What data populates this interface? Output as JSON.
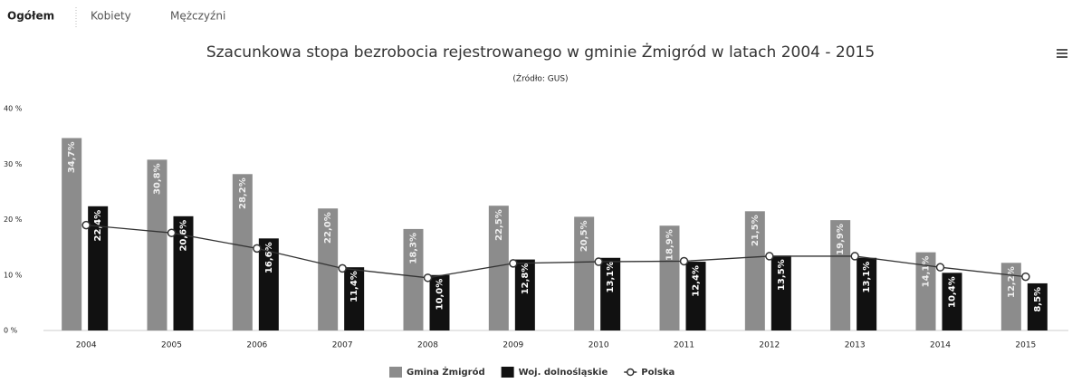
{
  "tabs": [
    "Ogółem",
    "Kobiety",
    "Mężczyźni"
  ],
  "chart_data": {
    "type": "bar",
    "title": "Szacunkowa stopa bezrobocia rejestrowanego w gminie Żmigród w latach 2004 - 2015",
    "subtitle": "(Źródło: GUS)",
    "categories": [
      "2004",
      "2005",
      "2006",
      "2007",
      "2008",
      "2009",
      "2010",
      "2011",
      "2012",
      "2013",
      "2014",
      "2015"
    ],
    "series": [
      {
        "name": "Gmina Żmigród",
        "color": "#8c8c8c",
        "values": [
          34.7,
          30.8,
          28.2,
          22.0,
          18.3,
          22.5,
          20.5,
          18.9,
          21.5,
          19.9,
          14.1,
          12.2
        ],
        "value_labels": [
          "34,7%",
          "30,8%",
          "28,2%",
          "22,0%",
          "18,3%",
          "22,5%",
          "20,5%",
          "18,9%",
          "21,5%",
          "19,9%",
          "14,1%",
          "12,2%"
        ]
      },
      {
        "name": "Woj. dolnośląskie",
        "color": "#111111",
        "values": [
          22.4,
          20.6,
          16.6,
          11.4,
          10.0,
          12.8,
          13.1,
          12.4,
          13.5,
          13.1,
          10.4,
          8.5
        ],
        "value_labels": [
          "22,4%",
          "20,6%",
          "16,6%",
          "11,4%",
          "10,0%",
          "12,8%",
          "13,1%",
          "12,4%",
          "13,5%",
          "13,1%",
          "10,4%",
          "8,5%"
        ]
      },
      {
        "name": "Polska",
        "color": "#333333",
        "type": "line",
        "values": [
          19.0,
          17.6,
          14.8,
          11.2,
          9.5,
          12.1,
          12.4,
          12.5,
          13.4,
          13.4,
          11.4,
          9.7
        ]
      }
    ],
    "ylim": [
      0,
      40
    ],
    "yticks": [
      {
        "value": 0,
        "label": "0 %"
      },
      {
        "value": 10,
        "label": "10 %"
      },
      {
        "value": 20,
        "label": "20 %"
      },
      {
        "value": 30,
        "label": "30 %"
      },
      {
        "value": 40,
        "label": "40 %"
      }
    ],
    "grid": false
  }
}
